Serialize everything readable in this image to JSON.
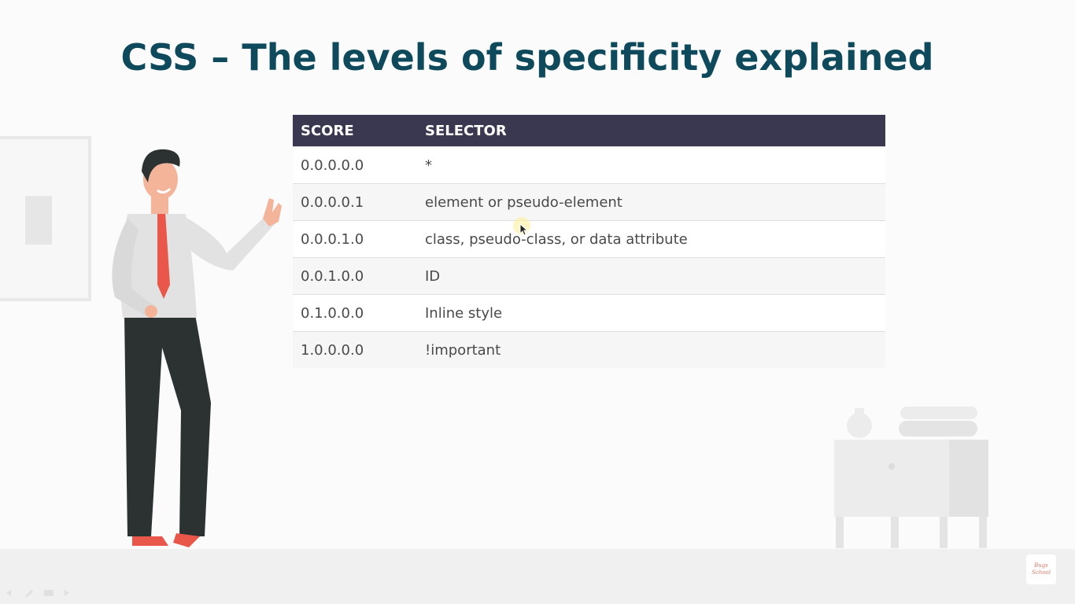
{
  "slide": {
    "title": "CSS – The levels of specificity explained"
  },
  "table": {
    "headers": [
      "SCORE",
      "SELECTOR"
    ],
    "rows": [
      {
        "score": "0.0.0.0.0",
        "selector": "*"
      },
      {
        "score": "0.0.0.0.1",
        "selector": "element or pseudo-element"
      },
      {
        "score": "0.0.0.1.0",
        "selector": "class, pseudo-class, or data attribute"
      },
      {
        "score": "0.0.1.0.0",
        "selector": "ID"
      },
      {
        "score": "0.1.0.0.0",
        "selector": "Inline style"
      },
      {
        "score": "1.0.0.0.0",
        "selector": "!important"
      }
    ]
  },
  "logo": {
    "line1": "Bugs",
    "line2": "School"
  },
  "colors": {
    "title": "#0e4a5c",
    "table_header": "#3a3850",
    "tie": "#e8574a",
    "shirt": "#e2e2e2",
    "trousers": "#2c3131"
  },
  "icons": [
    "cursor-icon",
    "player-prev-icon",
    "player-pen-icon",
    "player-menu-icon",
    "player-next-icon"
  ]
}
